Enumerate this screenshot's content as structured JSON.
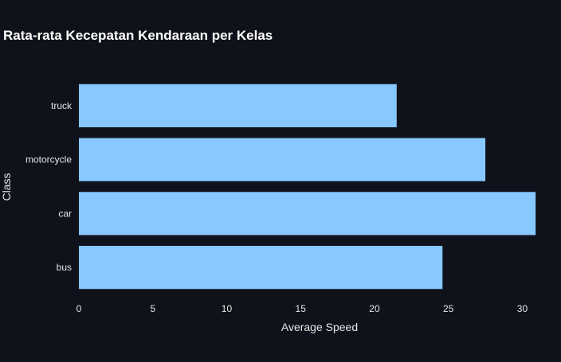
{
  "chart_data": {
    "type": "bar",
    "orientation": "horizontal",
    "title": "Rata-rata Kecepatan Kendaraan per Kelas",
    "xlabel": "Average Speed",
    "ylabel": "Class",
    "categories": [
      "bus",
      "car",
      "motorcycle",
      "truck"
    ],
    "values": [
      24.6,
      30.9,
      27.5,
      21.5
    ],
    "xlim": [
      0,
      31
    ],
    "xticks": [
      0,
      5,
      10,
      15,
      20,
      25,
      30
    ],
    "grid": false,
    "colors": {
      "background": "#0f121a",
      "bar": "#86c8ff",
      "text": "#ffffff",
      "tick_text": "#e6e6e6"
    }
  }
}
